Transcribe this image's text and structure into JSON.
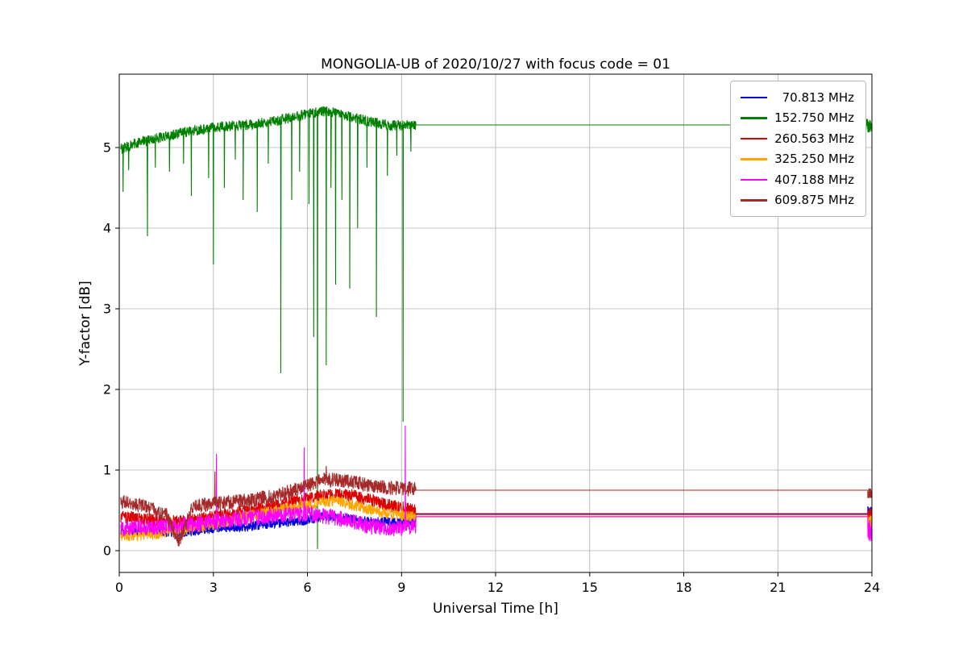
{
  "chart_data": {
    "type": "line",
    "title": "MONGOLIA-UB of 2020/10/27 with focus code = 01",
    "xlabel": "Universal Time [h]",
    "ylabel": "Y-factor [dB]",
    "xlim": [
      0,
      24
    ],
    "ylim": [
      -0.27,
      5.91
    ],
    "xticks": [
      0,
      3,
      6,
      9,
      12,
      15,
      18,
      21,
      24
    ],
    "yticks": [
      0,
      1,
      2,
      3,
      4,
      5
    ],
    "grid": true,
    "grid_color": "#b0b0b0",
    "legend_position": "upper right",
    "series": [
      {
        "label": "  70.813 MHz",
        "color": "#0000dd",
        "noisy": {
          "t0": 0.05,
          "t1": 9.45,
          "step": 0.008,
          "amp": 0.06,
          "base": [
            [
              0,
              0.22
            ],
            [
              1,
              0.25
            ],
            [
              2,
              0.22
            ],
            [
              3,
              0.28
            ],
            [
              4,
              0.3
            ],
            [
              5,
              0.34
            ],
            [
              6,
              0.38
            ],
            [
              6.6,
              0.43
            ],
            [
              7.2,
              0.4
            ],
            [
              8,
              0.36
            ],
            [
              9.45,
              0.35
            ]
          ]
        },
        "spikes": [],
        "flat": 0.45,
        "flat_end": 23.87,
        "end_burst": {
          "base": 0.48,
          "amp": 0.07
        }
      },
      {
        "label": "152.750 MHz",
        "color": "#008000",
        "noisy": {
          "t0": 0.05,
          "t1": 9.45,
          "step": 0.008,
          "amp": 0.065,
          "base": [
            [
              0,
              4.97
            ],
            [
              0.5,
              5.05
            ],
            [
              1,
              5.1
            ],
            [
              2,
              5.18
            ],
            [
              3,
              5.25
            ],
            [
              4,
              5.28
            ],
            [
              5,
              5.33
            ],
            [
              5.8,
              5.4
            ],
            [
              6.4,
              5.45
            ],
            [
              6.9,
              5.44
            ],
            [
              7.4,
              5.38
            ],
            [
              8,
              5.32
            ],
            [
              8.6,
              5.28
            ],
            [
              9.45,
              5.27
            ]
          ]
        },
        "spikes": [
          [
            0.12,
            4.45
          ],
          [
            0.3,
            4.72
          ],
          [
            0.9,
            3.9
          ],
          [
            1.15,
            4.75
          ],
          [
            1.6,
            4.7
          ],
          [
            2.05,
            4.8
          ],
          [
            2.3,
            4.4
          ],
          [
            2.85,
            4.62
          ],
          [
            3.0,
            3.55
          ],
          [
            3.35,
            4.5
          ],
          [
            3.7,
            4.85
          ],
          [
            3.95,
            4.35
          ],
          [
            4.4,
            4.2
          ],
          [
            4.75,
            4.8
          ],
          [
            5.15,
            2.2
          ],
          [
            5.5,
            4.35
          ],
          [
            5.75,
            4.7
          ],
          [
            6.05,
            4.3
          ],
          [
            6.2,
            2.65
          ],
          [
            6.32,
            0.02
          ],
          [
            6.6,
            2.3
          ],
          [
            6.75,
            4.5
          ],
          [
            6.9,
            3.3
          ],
          [
            7.1,
            4.35
          ],
          [
            7.35,
            3.25
          ],
          [
            7.6,
            4.0
          ],
          [
            7.9,
            4.75
          ],
          [
            8.2,
            2.9
          ],
          [
            8.55,
            4.65
          ],
          [
            8.85,
            4.9
          ],
          [
            9.05,
            1.6
          ],
          [
            9.3,
            4.95
          ]
        ],
        "flat": 5.28,
        "flat_end": 23.8,
        "end_burst": {
          "base": 5.27,
          "amp": 0.09
        }
      },
      {
        "label": "260.563 MHz",
        "color": "#dd0000",
        "noisy": {
          "t0": 0.05,
          "t1": 9.45,
          "step": 0.008,
          "amp": 0.08,
          "base": [
            [
              0,
              0.42
            ],
            [
              1,
              0.38
            ],
            [
              2,
              0.36
            ],
            [
              3,
              0.42
            ],
            [
              4,
              0.5
            ],
            [
              5,
              0.56
            ],
            [
              6,
              0.65
            ],
            [
              6.8,
              0.7
            ],
            [
              7.5,
              0.68
            ],
            [
              8.5,
              0.57
            ],
            [
              9.45,
              0.5
            ]
          ]
        },
        "spikes": [],
        "flat": 0.46,
        "flat_end": 23.87,
        "end_burst": {
          "base": 0.45,
          "amp": 0.08
        }
      },
      {
        "label": "325.250 MHz",
        "color": "#ffa500",
        "noisy": {
          "t0": 0.05,
          "t1": 9.45,
          "step": 0.008,
          "amp": 0.07,
          "base": [
            [
              0,
              0.18
            ],
            [
              1,
              0.2
            ],
            [
              2,
              0.26
            ],
            [
              3,
              0.32
            ],
            [
              4,
              0.42
            ],
            [
              5,
              0.5
            ],
            [
              6,
              0.56
            ],
            [
              6.8,
              0.62
            ],
            [
              7.5,
              0.56
            ],
            [
              8.5,
              0.46
            ],
            [
              9.45,
              0.42
            ]
          ]
        },
        "spikes": [],
        "flat": 0.43,
        "flat_end": 23.87,
        "end_burst": {
          "base": 0.3,
          "amp": 0.14
        }
      },
      {
        "label": "407.188 MHz",
        "color": "#ff00ff",
        "noisy": {
          "t0": 0.05,
          "t1": 9.45,
          "step": 0.008,
          "amp": 0.1,
          "base": [
            [
              0,
              0.26
            ],
            [
              0.5,
              0.3
            ],
            [
              1,
              0.28
            ],
            [
              2,
              0.31
            ],
            [
              3,
              0.36
            ],
            [
              4,
              0.4
            ],
            [
              5,
              0.43
            ],
            [
              6,
              0.46
            ],
            [
              7,
              0.4
            ],
            [
              8,
              0.3
            ],
            [
              9,
              0.27
            ],
            [
              9.45,
              0.3
            ]
          ]
        },
        "spikes": [
          [
            3.1,
            1.2
          ],
          [
            5.9,
            1.28
          ],
          [
            9.12,
            1.55
          ]
        ],
        "flat": 0.42,
        "flat_end": 23.87,
        "end_burst": {
          "base": 0.25,
          "amp": 0.14
        }
      },
      {
        "label": "609.875 MHz",
        "color": "#a52a2a",
        "noisy": {
          "t0": 0.05,
          "t1": 9.45,
          "step": 0.008,
          "amp": 0.09,
          "base": [
            [
              0,
              0.62
            ],
            [
              0.5,
              0.58
            ],
            [
              1.0,
              0.52
            ],
            [
              1.5,
              0.45
            ],
            [
              1.7,
              0.25
            ],
            [
              1.9,
              0.12
            ],
            [
              2.1,
              0.3
            ],
            [
              2.3,
              0.55
            ],
            [
              3,
              0.58
            ],
            [
              4,
              0.62
            ],
            [
              5,
              0.68
            ],
            [
              5.8,
              0.78
            ],
            [
              6.5,
              0.88
            ],
            [
              7.2,
              0.87
            ],
            [
              7.8,
              0.82
            ],
            [
              8.5,
              0.78
            ],
            [
              9.45,
              0.77
            ]
          ]
        },
        "spikes": [
          [
            3.05,
            0.98
          ],
          [
            6.6,
            1.05
          ]
        ],
        "flat": 0.75,
        "flat_end": 23.87,
        "end_burst": {
          "base": 0.71,
          "amp": 0.06
        }
      }
    ]
  }
}
